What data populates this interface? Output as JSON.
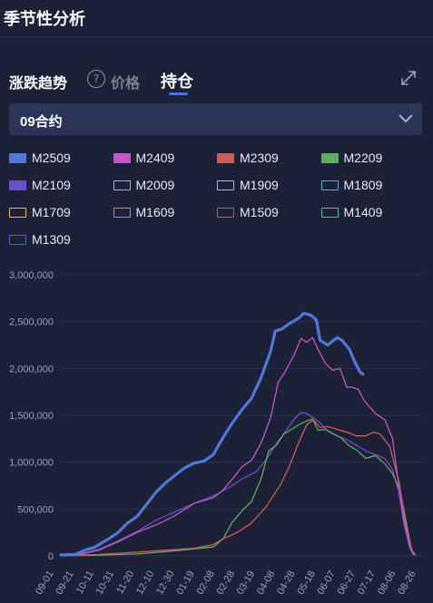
{
  "header": {
    "title": "季节性分析"
  },
  "tabs": {
    "main_label": "涨跌趋势",
    "help_icon": "question-circle-icon",
    "price_label": "价格",
    "oi_label": "持仓",
    "active": "持仓",
    "expand_icon": "expand-arrows-icon"
  },
  "contract_select": {
    "value": "09合约",
    "icon": "chevron-down-icon"
  },
  "legend": [
    {
      "name": "M2509",
      "color": "#4f78d8",
      "filled": true
    },
    {
      "name": "M2409",
      "color": "#c755c9",
      "filled": true
    },
    {
      "name": "M2309",
      "color": "#d45a5a",
      "filled": true
    },
    {
      "name": "M2209",
      "color": "#5fae5f",
      "filled": true
    },
    {
      "name": "M2109",
      "color": "#6a4fc8",
      "filled": true
    },
    {
      "name": "M2009",
      "color": "#78c7c9",
      "filled": false
    },
    {
      "name": "M1909",
      "color": "#b4b4e6",
      "filled": false
    },
    {
      "name": "M1809",
      "color": "#5aaed0",
      "filled": false
    },
    {
      "name": "M1709",
      "color": "#d8c44a",
      "filled": false
    },
    {
      "name": "M1609",
      "color": "#d86ad8",
      "filled": false
    },
    {
      "name": "M1509",
      "color": "#d04a6a",
      "filled": false
    },
    {
      "name": "M1409",
      "color": "#4ac0a8",
      "filled": false
    },
    {
      "name": "M1309",
      "color": "#4a64d0",
      "filled": false
    }
  ],
  "chart_data": {
    "type": "line",
    "x_ticks": [
      "09-01",
      "09-21",
      "10-11",
      "10-31",
      "11-20",
      "12-10",
      "12-30",
      "01-19",
      "02-08",
      "02-28",
      "03-19",
      "04-08",
      "04-28",
      "05-18",
      "06-07",
      "06-27",
      "07-17",
      "08-06",
      "08-26"
    ],
    "ylim": [
      0,
      3000000
    ],
    "y_ticks": [
      0,
      500000,
      1000000,
      1500000,
      2000000,
      2500000,
      3000000
    ],
    "y_tick_labels": [
      "0",
      "500,000",
      "1,000,000",
      "1,500,000",
      "2,000,000",
      "2,500,000",
      "3,000,000"
    ],
    "grid": true,
    "legend_position": "top",
    "series": [
      {
        "name": "M2509",
        "color": "#4f78d8",
        "width": 3.2,
        "points": [
          [
            0,
            10000
          ],
          [
            15,
            15000
          ],
          [
            25,
            60000
          ],
          [
            35,
            90000
          ],
          [
            50,
            180000
          ],
          [
            60,
            250000
          ],
          [
            70,
            350000
          ],
          [
            80,
            420000
          ],
          [
            90,
            550000
          ],
          [
            100,
            680000
          ],
          [
            110,
            780000
          ],
          [
            120,
            860000
          ],
          [
            130,
            940000
          ],
          [
            140,
            990000
          ],
          [
            150,
            1010000
          ],
          [
            160,
            1080000
          ],
          [
            170,
            1260000
          ],
          [
            180,
            1420000
          ],
          [
            190,
            1560000
          ],
          [
            200,
            1680000
          ],
          [
            210,
            1900000
          ],
          [
            220,
            2180000
          ],
          [
            225,
            2400000
          ],
          [
            232,
            2420000
          ],
          [
            240,
            2480000
          ],
          [
            250,
            2540000
          ],
          [
            255,
            2590000
          ],
          [
            262,
            2570000
          ],
          [
            268,
            2520000
          ],
          [
            272,
            2300000
          ],
          [
            280,
            2250000
          ],
          [
            290,
            2330000
          ],
          [
            295,
            2300000
          ],
          [
            303,
            2200000
          ],
          [
            308,
            2080000
          ],
          [
            314,
            1960000
          ],
          [
            317,
            1940000
          ]
        ]
      },
      {
        "name": "M2409",
        "color": "#c755c9",
        "width": 1.3,
        "points": [
          [
            0,
            5000
          ],
          [
            20,
            15000
          ],
          [
            40,
            60000
          ],
          [
            60,
            150000
          ],
          [
            80,
            250000
          ],
          [
            100,
            330000
          ],
          [
            120,
            430000
          ],
          [
            140,
            560000
          ],
          [
            160,
            620000
          ],
          [
            170,
            700000
          ],
          [
            180,
            820000
          ],
          [
            190,
            950000
          ],
          [
            200,
            1020000
          ],
          [
            210,
            1200000
          ],
          [
            220,
            1470000
          ],
          [
            228,
            1850000
          ],
          [
            235,
            1960000
          ],
          [
            245,
            2150000
          ],
          [
            252,
            2320000
          ],
          [
            258,
            2280000
          ],
          [
            264,
            2330000
          ],
          [
            270,
            2200000
          ],
          [
            278,
            2050000
          ],
          [
            285,
            1980000
          ],
          [
            293,
            2000000
          ],
          [
            300,
            1800000
          ],
          [
            305,
            1800000
          ],
          [
            312,
            1780000
          ],
          [
            318,
            1660000
          ],
          [
            330,
            1520000
          ],
          [
            340,
            1450000
          ],
          [
            348,
            1250000
          ],
          [
            354,
            800000
          ],
          [
            360,
            380000
          ],
          [
            366,
            120000
          ],
          [
            370,
            20000
          ]
        ]
      },
      {
        "name": "M2309",
        "color": "#d45a5a",
        "width": 1.3,
        "points": [
          [
            0,
            2000
          ],
          [
            40,
            15000
          ],
          [
            80,
            40000
          ],
          [
            110,
            60000
          ],
          [
            140,
            80000
          ],
          [
            160,
            120000
          ],
          [
            170,
            180000
          ],
          [
            185,
            250000
          ],
          [
            200,
            350000
          ],
          [
            215,
            520000
          ],
          [
            230,
            750000
          ],
          [
            240,
            960000
          ],
          [
            250,
            1220000
          ],
          [
            258,
            1400000
          ],
          [
            265,
            1450000
          ],
          [
            272,
            1370000
          ],
          [
            280,
            1380000
          ],
          [
            290,
            1350000
          ],
          [
            300,
            1320000
          ],
          [
            310,
            1280000
          ],
          [
            320,
            1280000
          ],
          [
            328,
            1320000
          ],
          [
            335,
            1300000
          ],
          [
            345,
            1170000
          ],
          [
            355,
            780000
          ],
          [
            362,
            320000
          ],
          [
            368,
            60000
          ],
          [
            372,
            10000
          ]
        ]
      },
      {
        "name": "M2209",
        "color": "#5fae5f",
        "width": 1.3,
        "points": [
          [
            0,
            2000
          ],
          [
            40,
            8000
          ],
          [
            80,
            20000
          ],
          [
            110,
            45000
          ],
          [
            140,
            75000
          ],
          [
            160,
            95000
          ],
          [
            170,
            180000
          ],
          [
            180,
            360000
          ],
          [
            190,
            480000
          ],
          [
            200,
            580000
          ],
          [
            210,
            820000
          ],
          [
            218,
            1120000
          ],
          [
            226,
            1180000
          ],
          [
            234,
            1300000
          ],
          [
            242,
            1350000
          ],
          [
            250,
            1400000
          ],
          [
            258,
            1440000
          ],
          [
            264,
            1460000
          ],
          [
            270,
            1340000
          ],
          [
            278,
            1350000
          ],
          [
            286,
            1300000
          ],
          [
            294,
            1260000
          ],
          [
            302,
            1180000
          ],
          [
            310,
            1130000
          ],
          [
            320,
            1040000
          ],
          [
            330,
            1070000
          ],
          [
            340,
            980000
          ],
          [
            348,
            880000
          ],
          [
            356,
            700000
          ],
          [
            362,
            380000
          ],
          [
            368,
            60000
          ],
          [
            372,
            10000
          ]
        ]
      },
      {
        "name": "M2109",
        "color": "#6a4fc8",
        "width": 1.3,
        "points": [
          [
            0,
            5000
          ],
          [
            20,
            20000
          ],
          [
            40,
            70000
          ],
          [
            60,
            160000
          ],
          [
            80,
            260000
          ],
          [
            100,
            380000
          ],
          [
            120,
            470000
          ],
          [
            140,
            560000
          ],
          [
            160,
            640000
          ],
          [
            175,
            720000
          ],
          [
            190,
            820000
          ],
          [
            205,
            900000
          ],
          [
            215,
            1020000
          ],
          [
            225,
            1180000
          ],
          [
            235,
            1320000
          ],
          [
            245,
            1460000
          ],
          [
            252,
            1530000
          ],
          [
            258,
            1520000
          ],
          [
            264,
            1480000
          ],
          [
            272,
            1420000
          ],
          [
            280,
            1330000
          ],
          [
            290,
            1280000
          ],
          [
            300,
            1240000
          ],
          [
            310,
            1180000
          ],
          [
            320,
            1120000
          ],
          [
            330,
            1080000
          ],
          [
            340,
            1040000
          ],
          [
            348,
            920000
          ],
          [
            354,
            700000
          ],
          [
            360,
            340000
          ],
          [
            366,
            80000
          ],
          [
            370,
            10000
          ]
        ]
      }
    ]
  }
}
